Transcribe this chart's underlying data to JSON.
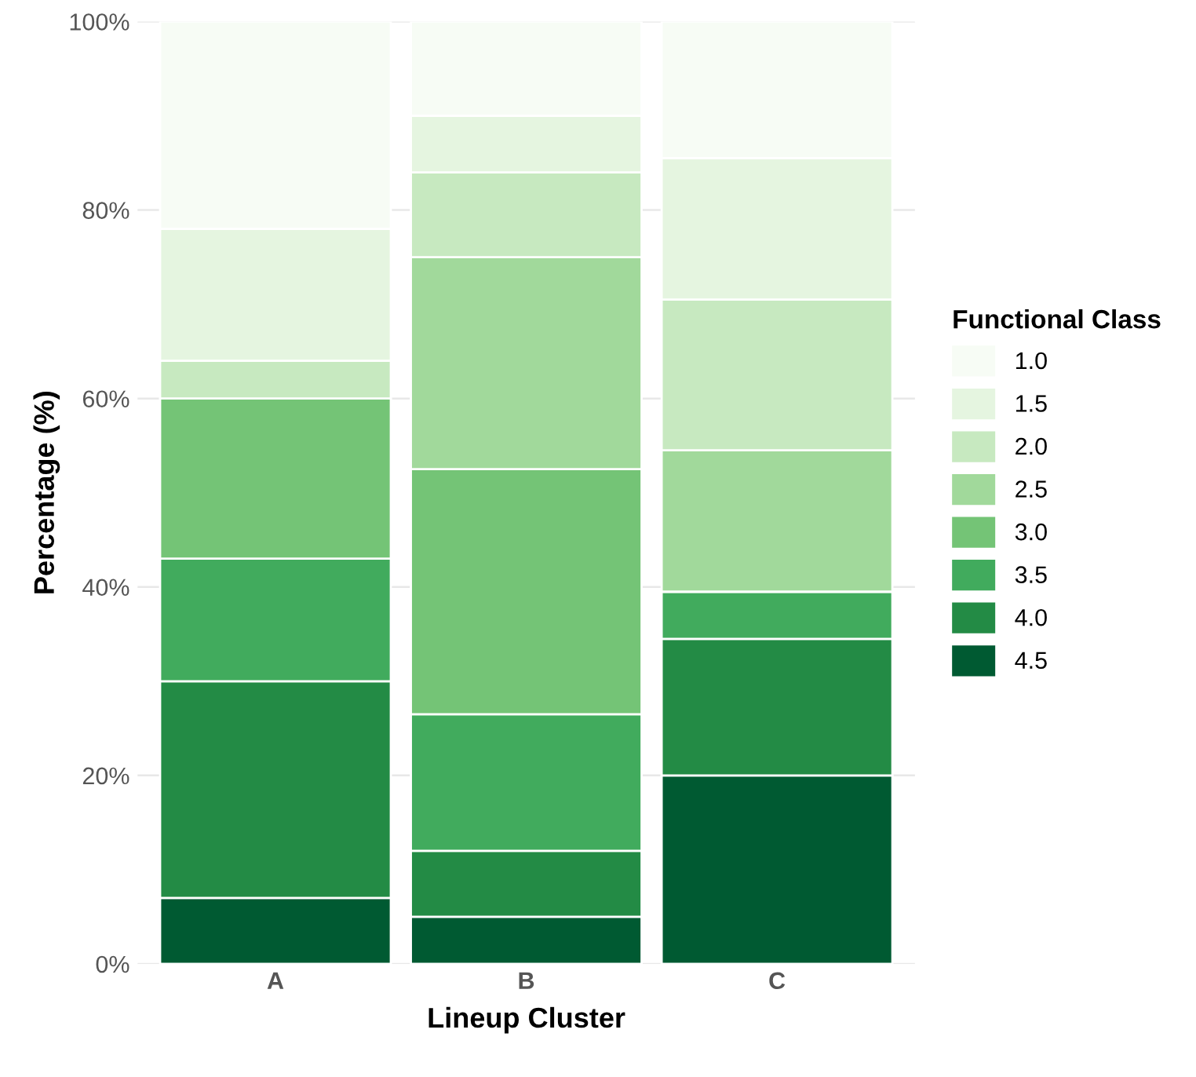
{
  "chart_data": {
    "type": "bar",
    "stacked": true,
    "xlabel": "Lineup Cluster",
    "ylabel": "Percentage (%)",
    "legend_title": "Functional Class",
    "legend": "right",
    "grid": "y",
    "categories": [
      "A",
      "B",
      "C"
    ],
    "ylim": [
      0,
      100
    ],
    "yticks": [
      {
        "value": 0,
        "label": "0%"
      },
      {
        "value": 20,
        "label": "20%"
      },
      {
        "value": 40,
        "label": "40%"
      },
      {
        "value": 60,
        "label": "60%"
      },
      {
        "value": 80,
        "label": "80%"
      },
      {
        "value": 100,
        "label": "100%"
      }
    ],
    "series": [
      {
        "name": "4.5",
        "color": "#005a32",
        "values": [
          7,
          5,
          20
        ]
      },
      {
        "name": "4.0",
        "color": "#238b45",
        "values": [
          23,
          7,
          14.5
        ]
      },
      {
        "name": "3.5",
        "color": "#41ab5d",
        "values": [
          13,
          14.5,
          5
        ]
      },
      {
        "name": "3.0",
        "color": "#74c476",
        "values": [
          17,
          26,
          0
        ]
      },
      {
        "name": "2.5",
        "color": "#a1d99b",
        "values": [
          0,
          22.5,
          15
        ]
      },
      {
        "name": "2.0",
        "color": "#c7e9c0",
        "values": [
          4,
          9,
          16
        ]
      },
      {
        "name": "1.5",
        "color": "#e5f5e0",
        "values": [
          14,
          6,
          15
        ]
      },
      {
        "name": "1.0",
        "color": "#f7fcf5",
        "values": [
          22,
          10,
          14.5
        ]
      }
    ]
  }
}
